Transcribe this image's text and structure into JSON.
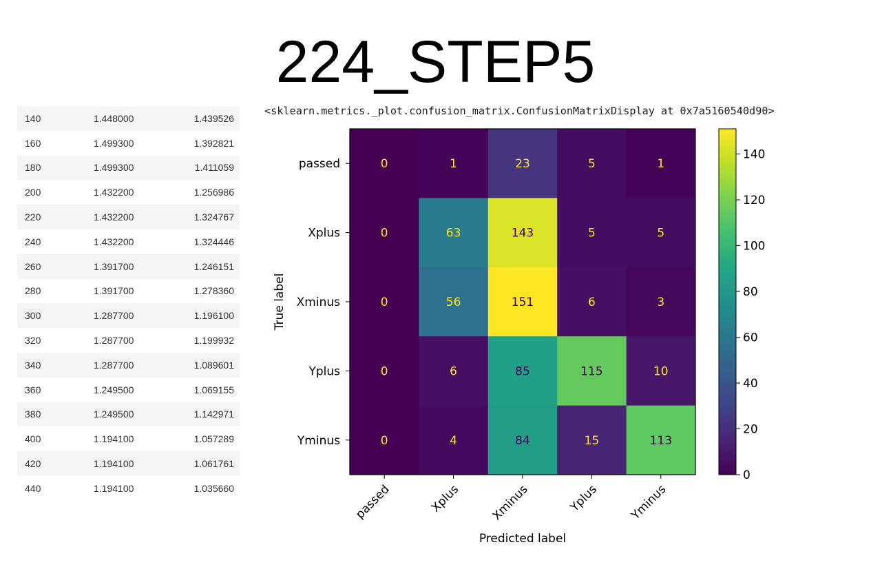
{
  "title": "224_STEP5",
  "repr_text": "<sklearn.metrics._plot.confusion_matrix.ConfusionMatrixDisplay at 0x7a5160540d90>",
  "table": {
    "rows": [
      [
        "140",
        "1.448000",
        "1.439526"
      ],
      [
        "160",
        "1.499300",
        "1.392821"
      ],
      [
        "180",
        "1.499300",
        "1.411059"
      ],
      [
        "200",
        "1.432200",
        "1.256986"
      ],
      [
        "220",
        "1.432200",
        "1.324767"
      ],
      [
        "240",
        "1.432200",
        "1.324446"
      ],
      [
        "260",
        "1.391700",
        "1.246151"
      ],
      [
        "280",
        "1.391700",
        "1.278360"
      ],
      [
        "300",
        "1.287700",
        "1.196100"
      ],
      [
        "320",
        "1.287700",
        "1.199932"
      ],
      [
        "340",
        "1.287700",
        "1.089601"
      ],
      [
        "360",
        "1.249500",
        "1.069155"
      ],
      [
        "380",
        "1.249500",
        "1.142971"
      ],
      [
        "400",
        "1.194100",
        "1.057289"
      ],
      [
        "420",
        "1.194100",
        "1.061761"
      ],
      [
        "440",
        "1.194100",
        "1.035660"
      ]
    ]
  },
  "chart_data": {
    "type": "heatmap",
    "xlabel": "Predicted label",
    "ylabel": "True label",
    "x_categories": [
      "passed",
      "Xplus",
      "Xminus",
      "Yplus",
      "Yminus"
    ],
    "y_categories": [
      "passed",
      "Xplus",
      "Xminus",
      "Yplus",
      "Yminus"
    ],
    "matrix": [
      [
        0,
        1,
        23,
        5,
        1
      ],
      [
        0,
        63,
        143,
        5,
        5
      ],
      [
        0,
        56,
        151,
        6,
        3
      ],
      [
        0,
        6,
        85,
        115,
        10
      ],
      [
        0,
        4,
        84,
        15,
        113
      ]
    ],
    "colormap": "viridis",
    "colorbar": {
      "min": 0,
      "max": 151,
      "ticks": [
        0,
        20,
        40,
        60,
        80,
        100,
        120,
        140
      ]
    },
    "text_colors": {
      "dark_cell": "#fde725",
      "light_cell": "#440154"
    }
  }
}
